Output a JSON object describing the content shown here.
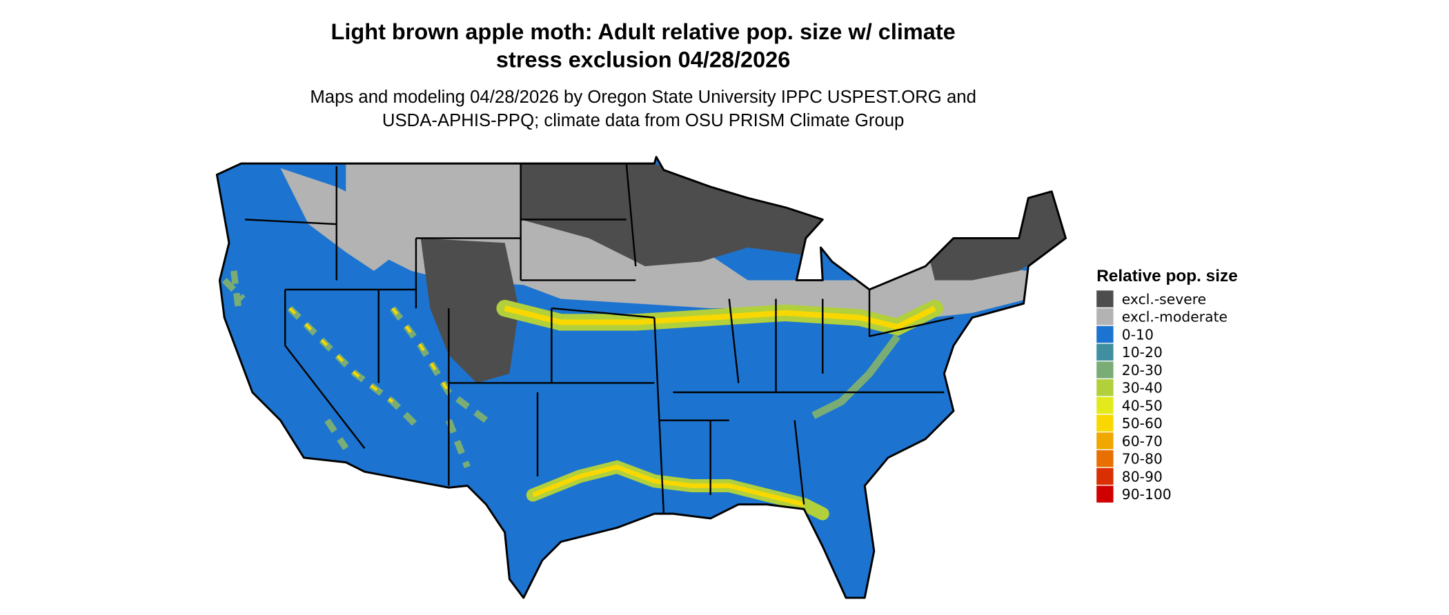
{
  "title": [
    "Light brown apple moth: Adult relative pop. size w/ climate",
    "stress exclusion 04/28/2026"
  ],
  "subtitle": [
    "Maps and modeling 04/28/2026 by Oregon State University IPPC USPEST.ORG and",
    "USDA-APHIS-PPQ; climate data from OSU PRISM Climate Group"
  ],
  "legend": {
    "title": "Relative pop. size",
    "items": [
      {
        "label": "excl.-severe",
        "color": "#4d4d4d"
      },
      {
        "label": "excl.-moderate",
        "color": "#b3b3b3"
      },
      {
        "label": "0-10",
        "color": "#1c74d0"
      },
      {
        "label": "10-20",
        "color": "#3f8fa0"
      },
      {
        "label": "20-30",
        "color": "#79ad75"
      },
      {
        "label": "30-40",
        "color": "#b1d03c"
      },
      {
        "label": "40-50",
        "color": "#e3ea1c"
      },
      {
        "label": "50-60",
        "color": "#f8d800"
      },
      {
        "label": "60-70",
        "color": "#f0a800"
      },
      {
        "label": "70-80",
        "color": "#e87000"
      },
      {
        "label": "80-90",
        "color": "#d83000"
      },
      {
        "label": "90-100",
        "color": "#d00000"
      }
    ]
  }
}
